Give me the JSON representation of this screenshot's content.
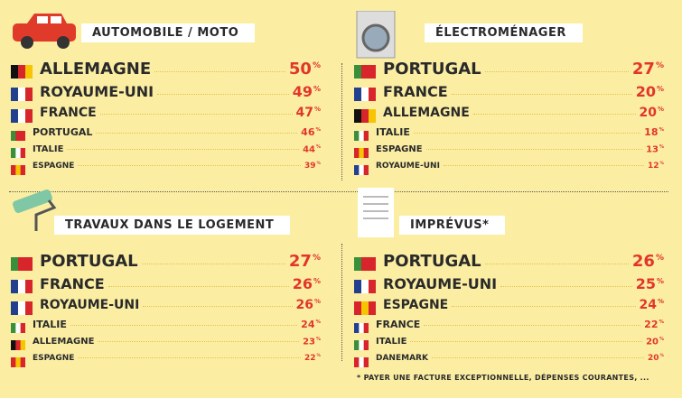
{
  "unit": "%",
  "panels": [
    {
      "title": "AUTOMOBILE / MOTO",
      "rows": [
        {
          "country": "ALLEMAGNE",
          "value": 50,
          "flag": [
            "#111111",
            "#d8252b",
            "#f6c400"
          ]
        },
        {
          "country": "ROYAUME-UNI",
          "value": 49,
          "flag": [
            "#23408e",
            "#ffffff",
            "#d8252b"
          ]
        },
        {
          "country": "FRANCE",
          "value": 47,
          "flag": [
            "#23408e",
            "#ffffff",
            "#d8252b"
          ]
        },
        {
          "country": "PORTUGAL",
          "value": 46,
          "flag": [
            "#3a8f3a",
            "#d8252b",
            "#d8252b"
          ]
        },
        {
          "country": "ITALIE",
          "value": 44,
          "flag": [
            "#3a8f3a",
            "#ffffff",
            "#d8252b"
          ]
        },
        {
          "country": "ESPAGNE",
          "value": 39,
          "flag": [
            "#d8252b",
            "#f6c400",
            "#d8252b"
          ]
        }
      ]
    },
    {
      "title": "ÉLECTROMÉNAGER",
      "rows": [
        {
          "country": "PORTUGAL",
          "value": 27,
          "flag": [
            "#3a8f3a",
            "#d8252b",
            "#d8252b"
          ]
        },
        {
          "country": "FRANCE",
          "value": 20,
          "flag": [
            "#23408e",
            "#ffffff",
            "#d8252b"
          ]
        },
        {
          "country": "ALLEMAGNE",
          "value": 20,
          "flag": [
            "#111111",
            "#d8252b",
            "#f6c400"
          ]
        },
        {
          "country": "ITALIE",
          "value": 18,
          "flag": [
            "#3a8f3a",
            "#ffffff",
            "#d8252b"
          ]
        },
        {
          "country": "ESPAGNE",
          "value": 13,
          "flag": [
            "#d8252b",
            "#f6c400",
            "#d8252b"
          ]
        },
        {
          "country": "ROYAUME-UNI",
          "value": 12,
          "flag": [
            "#23408e",
            "#ffffff",
            "#d8252b"
          ]
        }
      ]
    },
    {
      "title": "TRAVAUX DANS LE LOGEMENT",
      "rows": [
        {
          "country": "PORTUGAL",
          "value": 27,
          "flag": [
            "#3a8f3a",
            "#d8252b",
            "#d8252b"
          ]
        },
        {
          "country": "FRANCE",
          "value": 26,
          "flag": [
            "#23408e",
            "#ffffff",
            "#d8252b"
          ]
        },
        {
          "country": "ROYAUME-UNI",
          "value": 26,
          "flag": [
            "#23408e",
            "#ffffff",
            "#d8252b"
          ]
        },
        {
          "country": "ITALIE",
          "value": 24,
          "flag": [
            "#3a8f3a",
            "#ffffff",
            "#d8252b"
          ]
        },
        {
          "country": "ALLEMAGNE",
          "value": 23,
          "flag": [
            "#111111",
            "#d8252b",
            "#f6c400"
          ]
        },
        {
          "country": "ESPAGNE",
          "value": 22,
          "flag": [
            "#d8252b",
            "#f6c400",
            "#d8252b"
          ]
        }
      ]
    },
    {
      "title": "IMPRÉVUS*",
      "rows": [
        {
          "country": "PORTUGAL",
          "value": 26,
          "flag": [
            "#3a8f3a",
            "#d8252b",
            "#d8252b"
          ]
        },
        {
          "country": "ROYAUME-UNI",
          "value": 25,
          "flag": [
            "#23408e",
            "#ffffff",
            "#d8252b"
          ]
        },
        {
          "country": "ESPAGNE",
          "value": 24,
          "flag": [
            "#d8252b",
            "#f6c400",
            "#d8252b"
          ]
        },
        {
          "country": "FRANCE",
          "value": 22,
          "flag": [
            "#23408e",
            "#ffffff",
            "#d8252b"
          ]
        },
        {
          "country": "ITALIE",
          "value": 20,
          "flag": [
            "#3a8f3a",
            "#ffffff",
            "#d8252b"
          ]
        },
        {
          "country": "DANEMARK",
          "value": 20,
          "flag": [
            "#d8252b",
            "#ffffff",
            "#d8252b"
          ]
        }
      ]
    }
  ],
  "footnote": "* PAYER UNE FACTURE EXCEPTIONNELLE, DÉPENSES COURANTES, ..."
}
